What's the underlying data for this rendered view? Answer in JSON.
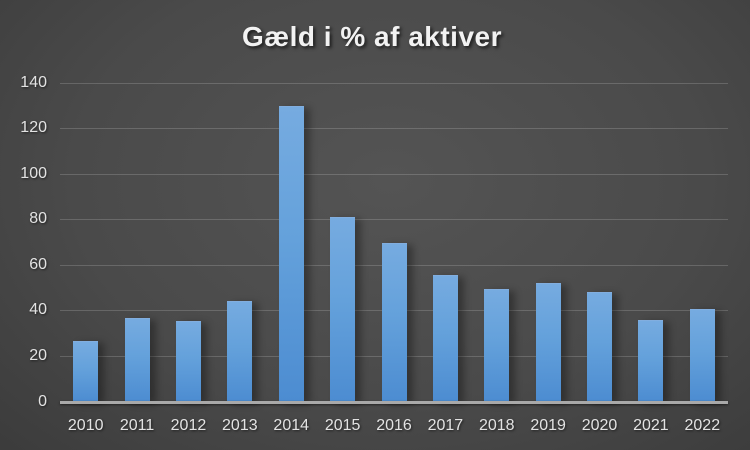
{
  "title": "Gæld i % af aktiver",
  "chart_data": {
    "type": "bar",
    "title": "Gæld i % af aktiver",
    "categories": [
      "2010",
      "2011",
      "2012",
      "2013",
      "2014",
      "2015",
      "2016",
      "2017",
      "2018",
      "2019",
      "2020",
      "2021",
      "2022"
    ],
    "values": [
      26.5,
      36.6,
      35.4,
      44.2,
      129.8,
      81.1,
      69.4,
      55.4,
      49.3,
      51.8,
      47.9,
      35.8,
      40.5
    ],
    "xlabel": "",
    "ylabel": "",
    "ylim": [
      0,
      140
    ],
    "yticks": [
      0,
      20,
      40,
      60,
      80,
      100,
      120,
      140
    ],
    "grid": true,
    "legend": false,
    "series_name": "Gæld i % af aktiver"
  },
  "colors": {
    "bar_gradient_top": "#76ABE0",
    "bar_gradient_bottom": "#4C8CD1",
    "background_center": "#545454",
    "background_edge": "#222222",
    "axis_line": "#A9A9A9",
    "gridline": "rgba(255,255,255,0.17)",
    "tick_label": "#E3E3E3",
    "title_text": "#F2F2F2"
  }
}
